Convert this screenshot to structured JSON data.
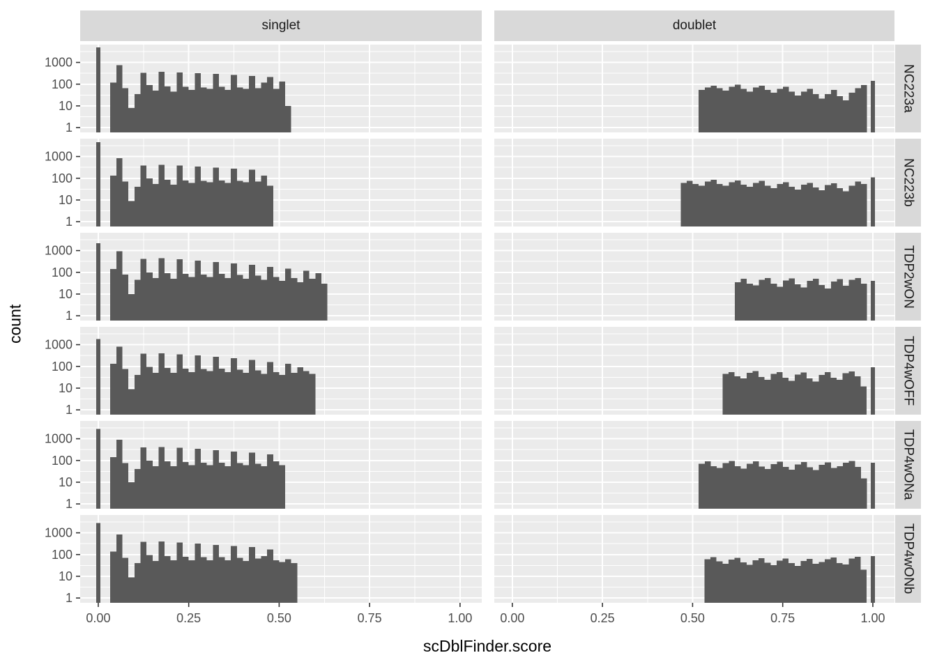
{
  "chart_data": {
    "type": "bar",
    "subtype": "faceted-log-histogram",
    "title": "",
    "xlabel": "scDblFinder.score",
    "ylabel": "count",
    "col_facets": [
      "singlet",
      "doublet"
    ],
    "row_facets": [
      "NC223a",
      "NC223b",
      "TDP2wON",
      "TDP4wOFF",
      "TDP4wONa",
      "TDP4wONb"
    ],
    "x_ticks": [
      0.0,
      0.25,
      0.5,
      0.75,
      1.0
    ],
    "x_tick_labels": [
      "0.00",
      "0.25",
      "0.50",
      "0.75",
      "1.00"
    ],
    "y_ticks": [
      1,
      10,
      100,
      1000
    ],
    "y_tick_labels": [
      "1",
      "10",
      "100",
      "1000"
    ],
    "y_scale": "log10",
    "xlim": [
      -0.05,
      1.06
    ],
    "ylim_log10": [
      -0.22,
      3.82
    ],
    "grid": true,
    "legend_position": "none",
    "bin_width": 0.01667,
    "panels": [
      {
        "row": "NC223a",
        "col": "singlet",
        "spike": {
          "x": 0.0,
          "count": 5000
        },
        "bars": {
          "start": 0.0333,
          "counts": [
            120,
            750,
            65,
            8,
            35,
            330,
            90,
            50,
            370,
            80,
            45,
            340,
            75,
            55,
            320,
            70,
            60,
            300,
            75,
            55,
            270,
            70,
            60,
            240,
            65,
            120,
            210,
            60,
            130,
            10
          ]
        }
      },
      {
        "row": "NC223a",
        "col": "doublet",
        "spike": {
          "x": 1.0,
          "count": 140
        },
        "bars": {
          "start": 0.517,
          "counts": [
            55,
            70,
            85,
            65,
            50,
            75,
            95,
            60,
            45,
            70,
            85,
            55,
            40,
            60,
            75,
            45,
            30,
            45,
            60,
            35,
            22,
            35,
            55,
            28,
            18,
            40,
            65,
            90
          ]
        }
      },
      {
        "row": "NC223b",
        "col": "singlet",
        "spike": {
          "x": 0.0,
          "count": 4500
        },
        "bars": {
          "start": 0.0333,
          "counts": [
            130,
            850,
            70,
            9,
            40,
            380,
            100,
            55,
            420,
            85,
            50,
            390,
            80,
            60,
            350,
            75,
            65,
            310,
            80,
            60,
            280,
            75,
            65,
            250,
            70,
            130,
            45
          ]
        }
      },
      {
        "row": "NC223b",
        "col": "doublet",
        "spike": {
          "x": 1.0,
          "count": 110
        },
        "bars": {
          "start": 0.467,
          "counts": [
            60,
            75,
            55,
            45,
            70,
            85,
            55,
            45,
            65,
            80,
            50,
            40,
            60,
            75,
            45,
            35,
            55,
            65,
            40,
            30,
            50,
            60,
            38,
            28,
            48,
            58,
            35,
            25,
            45,
            70,
            55
          ]
        }
      },
      {
        "row": "TDP2wON",
        "col": "singlet",
        "spike": {
          "x": 0.0,
          "count": 2200
        },
        "bars": {
          "start": 0.0333,
          "counts": [
            140,
            950,
            80,
            10,
            45,
            420,
            100,
            55,
            450,
            90,
            50,
            400,
            85,
            60,
            350,
            80,
            60,
            300,
            85,
            55,
            260,
            75,
            50,
            220,
            70,
            45,
            180,
            60,
            40,
            150,
            55,
            35,
            120,
            50,
            90,
            30
          ]
        }
      },
      {
        "row": "TDP2wON",
        "col": "doublet",
        "spike": {
          "x": 1.0,
          "count": 40
        },
        "bars": {
          "start": 0.617,
          "counts": [
            35,
            50,
            30,
            25,
            45,
            55,
            30,
            22,
            42,
            52,
            28,
            20,
            40,
            50,
            26,
            18,
            38,
            48,
            24,
            45,
            55,
            30
          ]
        }
      },
      {
        "row": "TDP4wOFF",
        "col": "singlet",
        "spike": {
          "x": 0.0,
          "count": 1800
        },
        "bars": {
          "start": 0.0333,
          "counts": [
            130,
            800,
            75,
            9,
            40,
            380,
            95,
            50,
            400,
            85,
            50,
            360,
            80,
            55,
            320,
            75,
            60,
            280,
            80,
            55,
            240,
            70,
            50,
            200,
            65,
            45,
            160,
            55,
            40,
            130,
            50,
            90,
            60,
            45
          ]
        }
      },
      {
        "row": "TDP4wOFF",
        "col": "doublet",
        "spike": {
          "x": 1.0,
          "count": 90
        },
        "bars": {
          "start": 0.583,
          "counts": [
            45,
            55,
            35,
            28,
            50,
            60,
            32,
            24,
            46,
            55,
            30,
            22,
            42,
            52,
            28,
            20,
            40,
            55,
            30,
            24,
            48,
            58,
            35,
            12
          ]
        }
      },
      {
        "row": "TDP4wONa",
        "col": "singlet",
        "spike": {
          "x": 0.0,
          "count": 2800
        },
        "bars": {
          "start": 0.0333,
          "counts": [
            140,
            900,
            75,
            10,
            40,
            400,
            100,
            55,
            420,
            90,
            55,
            380,
            85,
            60,
            340,
            80,
            60,
            300,
            80,
            55,
            260,
            75,
            60,
            230,
            70,
            55,
            190,
            90,
            60
          ]
        }
      },
      {
        "row": "TDP4wONa",
        "col": "doublet",
        "spike": {
          "x": 1.0,
          "count": 80
        },
        "bars": {
          "start": 0.517,
          "counts": [
            70,
            90,
            55,
            45,
            75,
            95,
            55,
            42,
            70,
            90,
            52,
            40,
            68,
            88,
            50,
            38,
            65,
            85,
            48,
            36,
            62,
            82,
            46,
            55,
            80,
            95,
            50,
            15
          ]
        }
      },
      {
        "row": "TDP4wONb",
        "col": "singlet",
        "spike": {
          "x": 0.0,
          "count": 2800
        },
        "bars": {
          "start": 0.0333,
          "counts": [
            135,
            850,
            70,
            9,
            40,
            380,
            95,
            50,
            400,
            85,
            55,
            360,
            80,
            55,
            320,
            75,
            55,
            280,
            75,
            55,
            250,
            70,
            50,
            220,
            65,
            85,
            170,
            55,
            45,
            60,
            40
          ]
        }
      },
      {
        "row": "TDP4wONb",
        "col": "doublet",
        "spike": {
          "x": 1.0,
          "count": 85
        },
        "bars": {
          "start": 0.533,
          "counts": [
            60,
            75,
            48,
            38,
            58,
            70,
            44,
            34,
            55,
            68,
            42,
            32,
            52,
            65,
            40,
            30,
            50,
            62,
            38,
            45,
            60,
            72,
            40,
            35,
            65,
            80,
            20
          ]
        }
      }
    ]
  },
  "theme": {
    "background": "#FFFFFF",
    "panel_bg": "#EBEBEB",
    "strip_bg": "#D9D9D9",
    "grid_color": "#FFFFFF",
    "bar_color": "#595959",
    "tick_text_color": "#4D4D4D",
    "tick_mark_color": "#333333",
    "strip_text_color": "#1A1A1A",
    "axis_title_color": "#000000"
  }
}
